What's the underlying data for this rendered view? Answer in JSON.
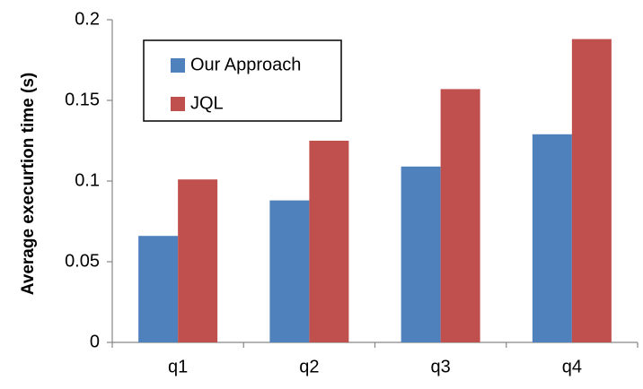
{
  "chart_data": {
    "type": "bar",
    "categories": [
      "q1",
      "q2",
      "q3",
      "q4"
    ],
    "series": [
      {
        "name": "Our Approach",
        "values": [
          0.066,
          0.088,
          0.109,
          0.129
        ],
        "color": "#4f81bd"
      },
      {
        "name": "JQL",
        "values": [
          0.101,
          0.125,
          0.157,
          0.188
        ],
        "color": "#c0504d"
      }
    ],
    "title": "",
    "xlabel": "",
    "ylabel": "Average execurtion time (s)",
    "ylim": [
      0,
      0.2
    ],
    "yticks": [
      "0",
      "0.05",
      "0.1",
      "0.15",
      "0.2"
    ],
    "grid": false,
    "legend_position": "top-left"
  }
}
